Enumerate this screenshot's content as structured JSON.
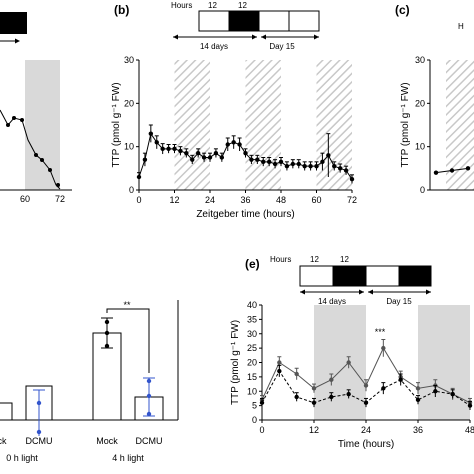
{
  "figure": {
    "panel_labels": [
      "(b)",
      "(c)",
      "(e)"
    ],
    "hours_label": "Hours",
    "bar_12": "12"
  },
  "panel_b": {
    "label": "(b)",
    "header": {
      "hours": "Hours",
      "h1": "12",
      "h2": "12",
      "period1": "14 days",
      "period2": "Day 15"
    }
  },
  "panel_c": {
    "label": "(c)",
    "hours_partial": "H"
  },
  "panel_e": {
    "label": "(e)",
    "header": {
      "hours": "Hours",
      "h1": "12",
      "h2": "12",
      "period1": "14 days",
      "period2": "Day 15"
    },
    "significance": "***"
  },
  "panel_a_partial": {
    "ticks": [
      "60",
      "72"
    ]
  },
  "panel_d_partial": {
    "labels": [
      "ck",
      "DCMU",
      "0 h light",
      "Mock",
      "DCMU",
      "4 h light"
    ],
    "significance": "**"
  },
  "chart_data": [
    {
      "id": "b",
      "type": "line",
      "title": "",
      "xlabel": "Zeitgeber time (hours)",
      "ylabel": "TTP (pmol g⁻¹ FW)",
      "xlim": [
        0,
        72
      ],
      "ylim": [
        0,
        30
      ],
      "xticks": [
        0,
        12,
        24,
        36,
        48,
        60,
        72
      ],
      "yticks": [
        0,
        10,
        20,
        30
      ],
      "shaded_intervals": [
        [
          12,
          24
        ],
        [
          36,
          48
        ],
        [
          60,
          72
        ]
      ],
      "shading": "hatched",
      "series": [
        {
          "x": [
            0,
            2,
            4,
            6,
            8,
            10,
            12,
            14,
            16,
            18,
            20,
            22,
            24,
            26,
            28,
            30,
            32,
            34,
            36,
            38,
            40,
            42,
            44,
            46,
            48,
            50,
            52,
            54,
            56,
            58,
            60,
            62,
            64,
            66,
            68,
            70,
            72
          ],
          "y": [
            3,
            7,
            13,
            11,
            9.5,
            9.5,
            9.5,
            9,
            8.5,
            7,
            8.5,
            7.5,
            7.5,
            8.5,
            7.5,
            10.5,
            11,
            10.5,
            8.5,
            7,
            7,
            6.5,
            6.5,
            6,
            6.5,
            5.5,
            6,
            6,
            5.5,
            5.5,
            5.5,
            6.5,
            8,
            5.5,
            5,
            4.5,
            2.5
          ],
          "err": [
            1,
            1.5,
            2,
            1.5,
            1.2,
            1,
            1,
            1,
            1,
            1,
            1,
            1,
            1,
            1,
            1,
            1.5,
            1.5,
            1.5,
            1,
            1,
            1,
            1,
            1,
            1,
            1,
            1,
            1,
            1,
            1,
            1,
            1,
            2,
            5,
            1,
            1,
            1,
            1
          ]
        }
      ]
    },
    {
      "id": "e",
      "type": "line",
      "title": "",
      "xlabel": "Time (hours)",
      "ylabel": "TTP (pmol g⁻¹ FW)",
      "xlim": [
        0,
        48
      ],
      "ylim": [
        0,
        40
      ],
      "xticks": [
        0,
        12,
        24,
        36,
        48
      ],
      "yticks": [
        0,
        5,
        10,
        15,
        20,
        25,
        30,
        35,
        40
      ],
      "shaded_intervals": [
        [
          12,
          24
        ],
        [
          36,
          48
        ]
      ],
      "shading": "gray",
      "series": [
        {
          "style": "solid",
          "x": [
            0,
            4,
            8,
            12,
            16,
            20,
            24,
            28,
            32,
            36,
            40,
            44,
            48
          ],
          "y": [
            7,
            20,
            16,
            11,
            14,
            20,
            12,
            25,
            15,
            11,
            12,
            9,
            6
          ],
          "err": [
            1.5,
            2,
            2,
            1.5,
            2,
            2,
            2,
            3,
            2,
            2,
            2,
            2,
            1.5
          ]
        },
        {
          "style": "dashed",
          "x": [
            0,
            4,
            8,
            12,
            16,
            20,
            24,
            28,
            32,
            36,
            40,
            44,
            48
          ],
          "y": [
            6,
            17,
            8,
            6,
            8,
            9,
            6,
            11,
            14,
            7,
            10,
            9,
            5
          ],
          "err": [
            1.5,
            2,
            1.5,
            1.5,
            1.5,
            1.5,
            1.5,
            2,
            2,
            1.5,
            2,
            1.5,
            1.5
          ]
        }
      ]
    },
    {
      "id": "c",
      "type": "line",
      "title": "",
      "ylabel": "TTP (pmol g⁻¹ FW)",
      "ylim": [
        0,
        30
      ],
      "yticks": [
        0,
        10,
        20,
        30
      ],
      "series": [
        {
          "x": [
            0,
            1,
            2
          ],
          "y": [
            4,
            4.5,
            5
          ]
        }
      ]
    },
    {
      "id": "d",
      "type": "bar",
      "title": "",
      "categories": [
        "Mock",
        "DCMU",
        "Mock",
        "DCMU"
      ],
      "groups": [
        "0 h light",
        "4 h light"
      ],
      "values": [
        null,
        8,
        32,
        13
      ]
    },
    {
      "id": "a",
      "type": "line",
      "title": "",
      "xticks": [
        60,
        72
      ]
    }
  ]
}
